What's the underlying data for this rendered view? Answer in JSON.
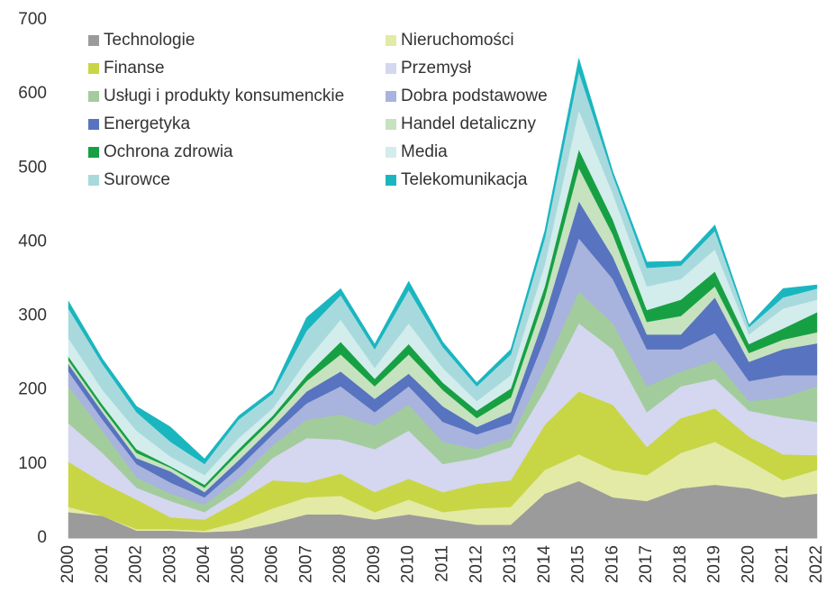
{
  "chart_data": {
    "type": "stacked_area",
    "categories": [
      "2000",
      "2001",
      "2002",
      "2003",
      "2004",
      "2005",
      "2006",
      "2007",
      "2008",
      "2009",
      "2010",
      "2011",
      "2012",
      "2013",
      "2014",
      "2015",
      "2016",
      "2017",
      "2018",
      "2019",
      "2020",
      "2021",
      "2022"
    ],
    "ylim": [
      0,
      700
    ],
    "yticks": [
      0,
      100,
      200,
      300,
      400,
      500,
      600,
      700
    ],
    "legend": "top-left",
    "series": [
      {
        "name": "Technologie",
        "color": "#9b9b9b",
        "values": [
          35,
          30,
          10,
          10,
          8,
          10,
          20,
          32,
          32,
          25,
          32,
          25,
          18,
          18,
          60,
          77,
          55,
          50,
          67,
          72,
          67,
          55,
          60
        ]
      },
      {
        "name": "Nieruchomości",
        "color": "#e3eaa6",
        "values": [
          7,
          0,
          2,
          2,
          2,
          12,
          20,
          23,
          25,
          10,
          20,
          10,
          22,
          24,
          32,
          36,
          37,
          35,
          48,
          58,
          38,
          23,
          32
        ]
      },
      {
        "name": "Finanse",
        "color": "#c8d645",
        "values": [
          61,
          45,
          40,
          16,
          15,
          28,
          38,
          20,
          30,
          27,
          28,
          27,
          33,
          36,
          61,
          85,
          88,
          38,
          47,
          45,
          32,
          35,
          20
        ]
      },
      {
        "name": "Przemysł",
        "color": "#d4d7ef",
        "values": [
          52,
          40,
          16,
          22,
          10,
          15,
          30,
          60,
          46,
          58,
          65,
          38,
          35,
          45,
          47,
          92,
          75,
          47,
          43,
          40,
          35,
          50,
          45
        ]
      },
      {
        "name": "Usługi i produkty konsumenckie",
        "color": "#a3cc9d",
        "values": [
          50,
          30,
          14,
          10,
          10,
          15,
          17,
          25,
          34,
          32,
          35,
          30,
          12,
          12,
          30,
          43,
          35,
          35,
          20,
          25,
          13,
          27,
          48
        ]
      },
      {
        "name": "Dobra podstawowe",
        "color": "#a8b3de",
        "values": [
          20,
          15,
          18,
          15,
          10,
          15,
          15,
          22,
          38,
          18,
          25,
          27,
          20,
          20,
          40,
          72,
          60,
          50,
          30,
          37,
          27,
          30,
          15
        ]
      },
      {
        "name": "Energetyka",
        "color": "#5873bf",
        "values": [
          10,
          10,
          8,
          15,
          7,
          10,
          10,
          16,
          20,
          18,
          17,
          21,
          10,
          15,
          30,
          50,
          30,
          20,
          20,
          48,
          26,
          35,
          43
        ]
      },
      {
        "name": "Handel detaliczny",
        "color": "#c6e2bf",
        "values": [
          5,
          5,
          7,
          5,
          6,
          10,
          10,
          14,
          23,
          17,
          26,
          22,
          12,
          20,
          25,
          45,
          30,
          17,
          25,
          15,
          12,
          13,
          15
        ]
      },
      {
        "name": "Ochrona zdrowia",
        "color": "#17a043",
        "values": [
          5,
          5,
          5,
          2,
          4,
          5,
          5,
          8,
          17,
          10,
          14,
          10,
          10,
          12,
          15,
          25,
          20,
          16,
          22,
          20,
          12,
          15,
          27
        ]
      },
      {
        "name": "Media",
        "color": "#d3ecec",
        "values": [
          25,
          20,
          25,
          13,
          13,
          15,
          10,
          20,
          30,
          15,
          28,
          20,
          13,
          18,
          30,
          53,
          35,
          32,
          28,
          30,
          13,
          27,
          17
        ]
      },
      {
        "name": "Surowce",
        "color": "#a8dadd",
        "values": [
          40,
          35,
          25,
          20,
          15,
          25,
          20,
          40,
          33,
          25,
          45,
          28,
          20,
          28,
          35,
          52,
          25,
          25,
          18,
          25,
          10,
          15,
          15
        ]
      },
      {
        "name": "Telekomunikacja",
        "color": "#1ab6c0",
        "values": [
          10,
          7,
          8,
          20,
          7,
          5,
          5,
          18,
          9,
          7,
          12,
          7,
          5,
          7,
          10,
          18,
          5,
          8,
          6,
          8,
          3,
          12,
          5
        ]
      }
    ]
  }
}
